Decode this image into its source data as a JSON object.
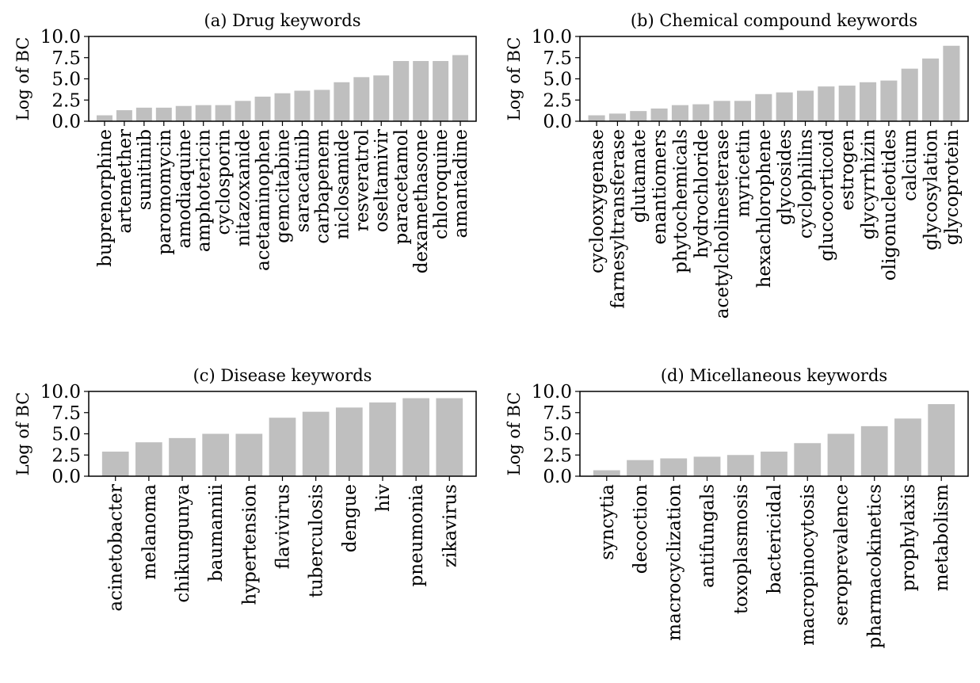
{
  "chart_data": [
    {
      "type": "bar",
      "title": "(a) Drug keywords",
      "ylabel": "Log of BC",
      "xlabel": "",
      "ylim": [
        0,
        10
      ],
      "yticks": [
        "0.0",
        "2.5",
        "5.0",
        "7.5",
        "10.0"
      ],
      "bar_color": "#bfbfbf",
      "categories": [
        "buprenorphine",
        "artemether",
        "sunitinib",
        "paromomycin",
        "amodiaquine",
        "amphotericin",
        "cyclosporin",
        "nitazoxanide",
        "acetaminophen",
        "gemcitabine",
        "saracatinib",
        "carbapenem",
        "niclosamide",
        "resveratrol",
        "oseltamivir",
        "paracetamol",
        "dexamethasone",
        "chloroquine",
        "amantadine"
      ],
      "values": [
        0.7,
        1.3,
        1.6,
        1.6,
        1.8,
        1.9,
        1.9,
        2.4,
        2.9,
        3.3,
        3.6,
        3.7,
        4.6,
        5.2,
        5.4,
        7.1,
        7.1,
        7.1,
        7.8
      ]
    },
    {
      "type": "bar",
      "title": "(b) Chemical compound keywords",
      "ylabel": "Log of BC",
      "xlabel": "",
      "ylim": [
        0,
        10
      ],
      "yticks": [
        "0.0",
        "2.5",
        "5.0",
        "7.5",
        "10.0"
      ],
      "bar_color": "#bfbfbf",
      "categories": [
        "cyclooxygenase",
        "farnesyltransferase",
        "glutamate",
        "enantiomers",
        "phytochemicals",
        "hydrochloride",
        "acetylcholinesterase",
        "myricetin",
        "hexachlorophene",
        "glycosides",
        "cyclophilins",
        "glucocorticoid",
        "estrogen",
        "glycyrrhizin",
        "oligonucleotides",
        "calcium",
        "glycosylation",
        "glycoprotein"
      ],
      "values": [
        0.7,
        0.9,
        1.2,
        1.5,
        1.9,
        2.0,
        2.4,
        2.4,
        3.2,
        3.4,
        3.6,
        4.1,
        4.2,
        4.6,
        4.8,
        6.2,
        7.4,
        8.9
      ]
    },
    {
      "type": "bar",
      "title": "(c) Disease keywords",
      "ylabel": "Log of BC",
      "xlabel": "",
      "ylim": [
        0,
        10
      ],
      "yticks": [
        "0.0",
        "2.5",
        "5.0",
        "7.5",
        "10.0"
      ],
      "bar_color": "#bfbfbf",
      "categories": [
        "acinetobacter",
        "melanoma",
        "chikungunya",
        "baumannii",
        "hypertension",
        "flavivirus",
        "tuberculosis",
        "dengue",
        "hiv",
        "pneumonia",
        "zikavirus"
      ],
      "values": [
        2.9,
        4.0,
        4.5,
        5.0,
        5.0,
        6.9,
        7.6,
        8.1,
        8.7,
        9.2,
        9.2
      ]
    },
    {
      "type": "bar",
      "title": "(d) Micellaneous keywords",
      "ylabel": "Log of BC",
      "xlabel": "",
      "ylim": [
        0,
        10
      ],
      "yticks": [
        "0.0",
        "2.5",
        "5.0",
        "7.5",
        "10.0"
      ],
      "bar_color": "#bfbfbf",
      "categories": [
        "syncytia",
        "decoction",
        "macrocyclization",
        "antifungals",
        "toxoplasmosis",
        "bactericidal",
        "macropinocytosis",
        "seroprevalence",
        "pharmacokinetics",
        "prophylaxis",
        "metabolism"
      ],
      "values": [
        0.7,
        1.9,
        2.1,
        2.3,
        2.5,
        2.9,
        3.9,
        5.0,
        5.9,
        6.8,
        8.5
      ]
    }
  ]
}
